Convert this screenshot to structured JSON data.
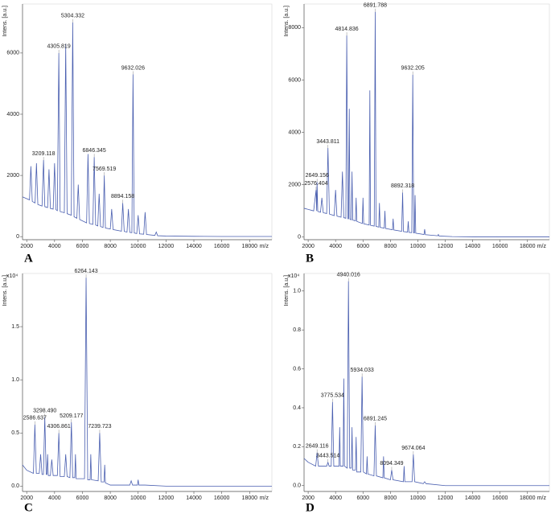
{
  "chart_data": [
    {
      "type": "line",
      "panel_label": "A",
      "y_label": "Intens. [a.u.]",
      "x_label": "m/z",
      "color": "#4a5fb0",
      "xlim": [
        1700,
        19600
      ],
      "xticks": [
        2000,
        4000,
        6000,
        8000,
        10000,
        12000,
        14000,
        16000,
        18000
      ],
      "ylim": [
        -100,
        7600
      ],
      "yticks": [
        0,
        2000,
        4000,
        6000
      ],
      "x": [
        1700,
        2200,
        2300,
        2400,
        2600,
        2700,
        2800,
        3100,
        3209.118,
        3300,
        3500,
        3600,
        3700,
        3900,
        4000,
        4100,
        4200,
        4305.819,
        4400,
        4700,
        4800,
        4900,
        5200,
        5304.332,
        5400,
        5600,
        5700,
        5800,
        6300,
        6400,
        6500,
        6750,
        6846.345,
        6950,
        7100,
        7200,
        7300,
        7480,
        7569.519,
        7650,
        8000,
        8100,
        8200,
        8800,
        8894.158,
        9000,
        9200,
        9300,
        9400,
        9550,
        9632.026,
        9720,
        9900,
        10000,
        10100,
        10400,
        10500,
        10600,
        11200,
        11300,
        11400,
        12000,
        14000,
        16000,
        18000,
        19600
      ],
      "values": [
        1300,
        1200,
        2300,
        1150,
        1100,
        2400,
        1050,
        1000,
        2500,
        980,
        950,
        2200,
        920,
        900,
        2400,
        880,
        850,
        6000,
        820,
        780,
        6300,
        750,
        700,
        7000,
        650,
        600,
        1700,
        560,
        450,
        2700,
        430,
        400,
        2600,
        380,
        350,
        1400,
        330,
        300,
        2000,
        280,
        250,
        900,
        230,
        180,
        1100,
        170,
        150,
        900,
        140,
        130,
        5300,
        120,
        100,
        700,
        90,
        80,
        800,
        70,
        40,
        150,
        30,
        20,
        10,
        5,
        5,
        5
      ],
      "annotations": [
        {
          "x": 3209.118,
          "y": 2500
        },
        {
          "x": 4305.819,
          "y": 6000
        },
        {
          "x": 5304.332,
          "y": 7000
        },
        {
          "x": 6846.345,
          "y": 2600
        },
        {
          "x": 7569.519,
          "y": 2000
        },
        {
          "x": 8894.158,
          "y": 1100
        },
        {
          "x": 9632.026,
          "y": 5300
        }
      ]
    },
    {
      "type": "line",
      "panel_label": "B",
      "y_label": "Intens. [a.u.]",
      "x_label": "m/z",
      "color": "#4a5fb0",
      "xlim": [
        1700,
        19600
      ],
      "xticks": [
        2000,
        4000,
        6000,
        8000,
        10000,
        12000,
        14000,
        16000,
        18000
      ],
      "ylim": [
        -100,
        8900
      ],
      "yticks": [
        0,
        2000,
        4000,
        6000,
        8000
      ],
      "x": [
        1700,
        2400,
        2576.404,
        2620,
        2649.156,
        2700,
        2900,
        3000,
        3100,
        3350,
        3443.811,
        3550,
        3900,
        4000,
        4100,
        4400,
        4500,
        4600,
        4750,
        4814.836,
        4900,
        4950,
        5000,
        5050,
        5150,
        5200,
        5250,
        5450,
        5500,
        5550,
        5950,
        6000,
        6050,
        6450,
        6500,
        6550,
        6820,
        6891.788,
        6950,
        7150,
        7200,
        7250,
        7550,
        7600,
        7650,
        8150,
        8200,
        8250,
        8820,
        8892.318,
        8950,
        9250,
        9300,
        9350,
        9560,
        9632.205,
        9700,
        9750,
        9800,
        9850,
        10450,
        10500,
        10550,
        11450,
        11500,
        11550,
        12500,
        14000,
        16000,
        18000,
        19600
      ],
      "values": [
        1100,
        1000,
        1800,
        1000,
        2100,
        980,
        950,
        1500,
        930,
        900,
        3400,
        880,
        820,
        1800,
        800,
        760,
        2500,
        740,
        720,
        7700,
        700,
        700,
        4900,
        680,
        660,
        2500,
        650,
        620,
        1500,
        600,
        520,
        1500,
        510,
        460,
        5600,
        450,
        420,
        8600,
        410,
        380,
        1300,
        370,
        340,
        1000,
        330,
        280,
        700,
        270,
        220,
        1700,
        210,
        190,
        600,
        180,
        170,
        6200,
        160,
        160,
        1600,
        150,
        100,
        300,
        90,
        50,
        100,
        40,
        20,
        10,
        5,
        5,
        5
      ],
      "annotations": [
        {
          "x": 2576.404,
          "y": 1800
        },
        {
          "x": 2649.156,
          "y": 2100
        },
        {
          "x": 3443.811,
          "y": 3400
        },
        {
          "x": 4814.836,
          "y": 7700
        },
        {
          "x": 6891.788,
          "y": 8600
        },
        {
          "x": 8892.318,
          "y": 1700
        },
        {
          "x": 9632.205,
          "y": 6200
        }
      ]
    },
    {
      "type": "line",
      "panel_label": "C",
      "y_label": "Intens. [a.u.]",
      "x_label": "m/z",
      "y_multiplier": "x10⁴",
      "color": "#4a5fb0",
      "xlim": [
        1700,
        19600
      ],
      "xticks": [
        2000,
        4000,
        6000,
        8000,
        10000,
        12000,
        14000,
        16000,
        18000
      ],
      "ylim": [
        -0.05,
        2.0
      ],
      "yticks": [
        {
          "value": 0,
          "label": "0.0"
        },
        0.5,
        {
          "value": 1,
          "label": "1.0"
        },
        1.5
      ],
      "x": [
        1700,
        2000,
        2480,
        2586.637,
        2690,
        2900,
        3000,
        3100,
        3200,
        3298.49,
        3400,
        3450,
        3500,
        3550,
        3700,
        3800,
        3900,
        4200,
        4306.861,
        4400,
        4700,
        4800,
        4900,
        5100,
        5209.177,
        5300,
        5450,
        5500,
        5550,
        6150,
        6264.143,
        6380,
        6550,
        6600,
        6650,
        7130,
        7239.723,
        7350,
        7550,
        7600,
        7650,
        8000,
        9400,
        9500,
        9600,
        9950,
        10000,
        10050,
        10500,
        12000,
        14000,
        16000,
        18000,
        19600
      ],
      "values": [
        0.2,
        0.15,
        0.12,
        0.58,
        0.12,
        0.12,
        0.3,
        0.11,
        0.11,
        0.65,
        0.11,
        0.11,
        0.3,
        0.1,
        0.1,
        0.25,
        0.1,
        0.1,
        0.5,
        0.09,
        0.09,
        0.3,
        0.09,
        0.08,
        0.6,
        0.08,
        0.08,
        0.3,
        0.07,
        0.07,
        1.96,
        0.06,
        0.06,
        0.3,
        0.06,
        0.05,
        0.5,
        0.04,
        0.04,
        0.2,
        0.03,
        0.01,
        0.01,
        0.05,
        0.01,
        0.01,
        0.06,
        0.01,
        0.01,
        0,
        0,
        0,
        0,
        0
      ],
      "annotations": [
        {
          "x": 2586.637,
          "y": 0.58
        },
        {
          "x": 3298.49,
          "y": 0.65,
          "label": "3298.490"
        },
        {
          "x": 4306.861,
          "y": 0.5
        },
        {
          "x": 5209.177,
          "y": 0.6
        },
        {
          "x": 6264.143,
          "y": 1.96
        },
        {
          "x": 7239.723,
          "y": 0.5
        }
      ]
    },
    {
      "type": "line",
      "panel_label": "D",
      "y_label": "Intens. [a.u.]",
      "x_label": "m/z",
      "y_multiplier": "x10⁴",
      "color": "#4a5fb0",
      "xlim": [
        1700,
        19600
      ],
      "xticks": [
        2000,
        4000,
        6000,
        8000,
        10000,
        12000,
        14000,
        16000,
        18000
      ],
      "ylim": [
        -0.03,
        1.09
      ],
      "yticks": [
        {
          "value": 0,
          "label": "0.0"
        },
        0.2,
        0.4,
        0.6,
        0.8,
        {
          "value": 1,
          "label": "1.0"
        }
      ],
      "x": [
        1700,
        2000,
        2550,
        2649.116,
        2750,
        3350,
        3443.514,
        3530,
        3680,
        3775.534,
        3870,
        4250,
        4300,
        4350,
        4550,
        4600,
        4650,
        4850,
        4940.016,
        5030,
        5150,
        5200,
        5250,
        5450,
        5500,
        5550,
        5840,
        5934.033,
        6030,
        6250,
        6300,
        6350,
        6800,
        6891.245,
        6980,
        7450,
        7500,
        7550,
        8000,
        8094.349,
        8190,
        8950,
        9000,
        9050,
        9580,
        9674.064,
        9770,
        10400,
        10500,
        10600,
        12000,
        14000,
        16000,
        18000,
        19600
      ],
      "values": [
        0.14,
        0.12,
        0.1,
        0.17,
        0.1,
        0.1,
        0.12,
        0.1,
        0.1,
        0.43,
        0.1,
        0.1,
        0.3,
        0.1,
        0.1,
        0.55,
        0.1,
        0.09,
        1.05,
        0.09,
        0.09,
        0.3,
        0.08,
        0.08,
        0.25,
        0.07,
        0.07,
        0.56,
        0.07,
        0.06,
        0.15,
        0.06,
        0.05,
        0.31,
        0.05,
        0.04,
        0.15,
        0.04,
        0.03,
        0.08,
        0.03,
        0.02,
        0.1,
        0.02,
        0.02,
        0.16,
        0.02,
        0.01,
        0.02,
        0.01,
        0,
        0,
        0,
        0,
        0
      ],
      "annotations": [
        {
          "x": 2649.116,
          "y": 0.17
        },
        {
          "x": 3443.514,
          "y": 0.12
        },
        {
          "x": 3775.534,
          "y": 0.43
        },
        {
          "x": 4940.016,
          "y": 1.05
        },
        {
          "x": 5934.033,
          "y": 0.56
        },
        {
          "x": 6891.245,
          "y": 0.31
        },
        {
          "x": 8094.349,
          "y": 0.08
        },
        {
          "x": 9674.064,
          "y": 0.16
        }
      ]
    }
  ]
}
